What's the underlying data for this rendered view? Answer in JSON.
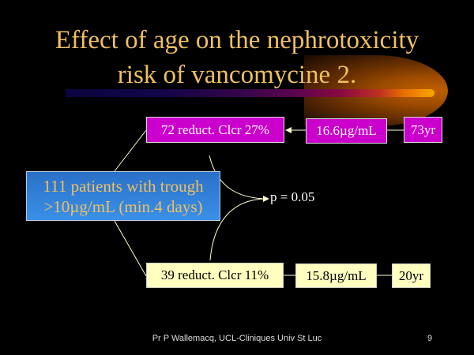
{
  "title_line1": "Effect of age on the nephrotoxicity",
  "title_line2": "risk of vancomycine 2.",
  "source_box": {
    "line1": "111 patients with trough",
    "line2": ">10µg/mL (min.4 days)"
  },
  "upper_branch": {
    "group": "72 reduct. Clcr 27%",
    "trough": "16.6µg/mL",
    "age": "73yr"
  },
  "lower_branch": {
    "group": "39 reduct. Clcr 11%",
    "trough": "15.8µg/mL",
    "age": "20yr"
  },
  "p_value": "p = 0.05",
  "footer": "Pr P Wallemacq, UCL-Cliniques Univ St Luc",
  "page_number": "9",
  "colors": {
    "title": "#f0c060",
    "upper_box": "#cc00cc",
    "lower_box": "#ffffc0",
    "source_box": "#3388dd"
  }
}
